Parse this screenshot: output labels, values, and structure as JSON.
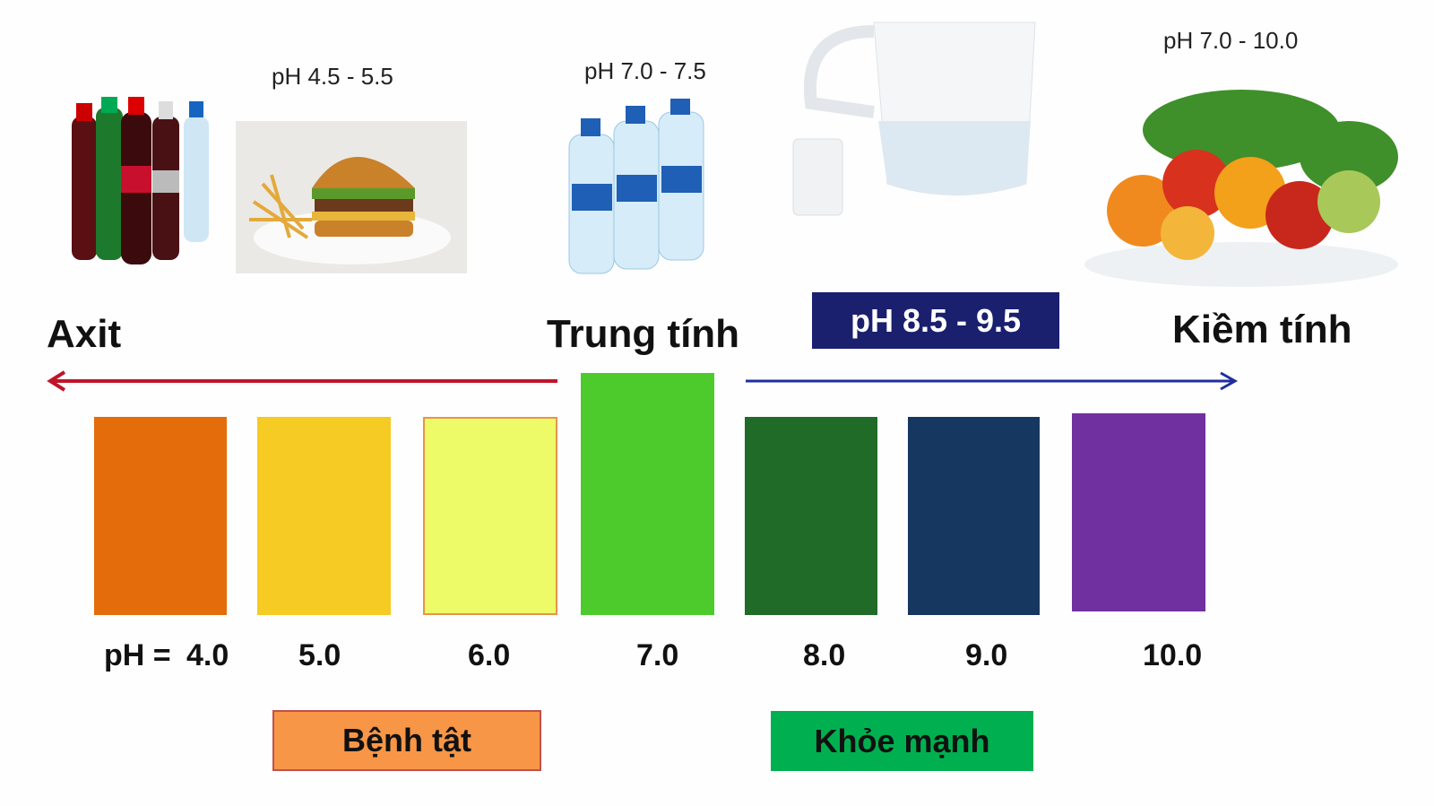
{
  "captions": {
    "junk_food": "pH 4.5 - 5.5",
    "bottled_water": "pH 7.0 - 7.5",
    "fruits_vegetables": "pH 7.0 - 10.0",
    "filtered_water": "pH 8.5 - 9.5"
  },
  "scale_labels": {
    "acid": "Axit",
    "neutral": "Trung tính",
    "alkaline": "Kiềm tính"
  },
  "ph_prefix": "pH =",
  "levels": [
    {
      "value": "4.0",
      "color": "#E46C0A"
    },
    {
      "value": "5.0",
      "color": "#F5CB24"
    },
    {
      "value": "6.0",
      "color": "#EEFB68"
    },
    {
      "value": "7.0",
      "color": "#4DCB2C"
    },
    {
      "value": "8.0",
      "color": "#1F6B27"
    },
    {
      "value": "9.0",
      "color": "#16375F"
    },
    {
      "value": "10.0",
      "color": "#7030A0"
    }
  ],
  "zones": {
    "disease": "Bệnh tật",
    "healthy": "Khỏe mạnh"
  },
  "colors": {
    "acid_arrow": "#C0142A",
    "alkaline_arrow": "#1F2FA0",
    "highlight_box": "#1A1F6E",
    "disease_box": "#F79646",
    "healthy_box": "#00B050"
  }
}
